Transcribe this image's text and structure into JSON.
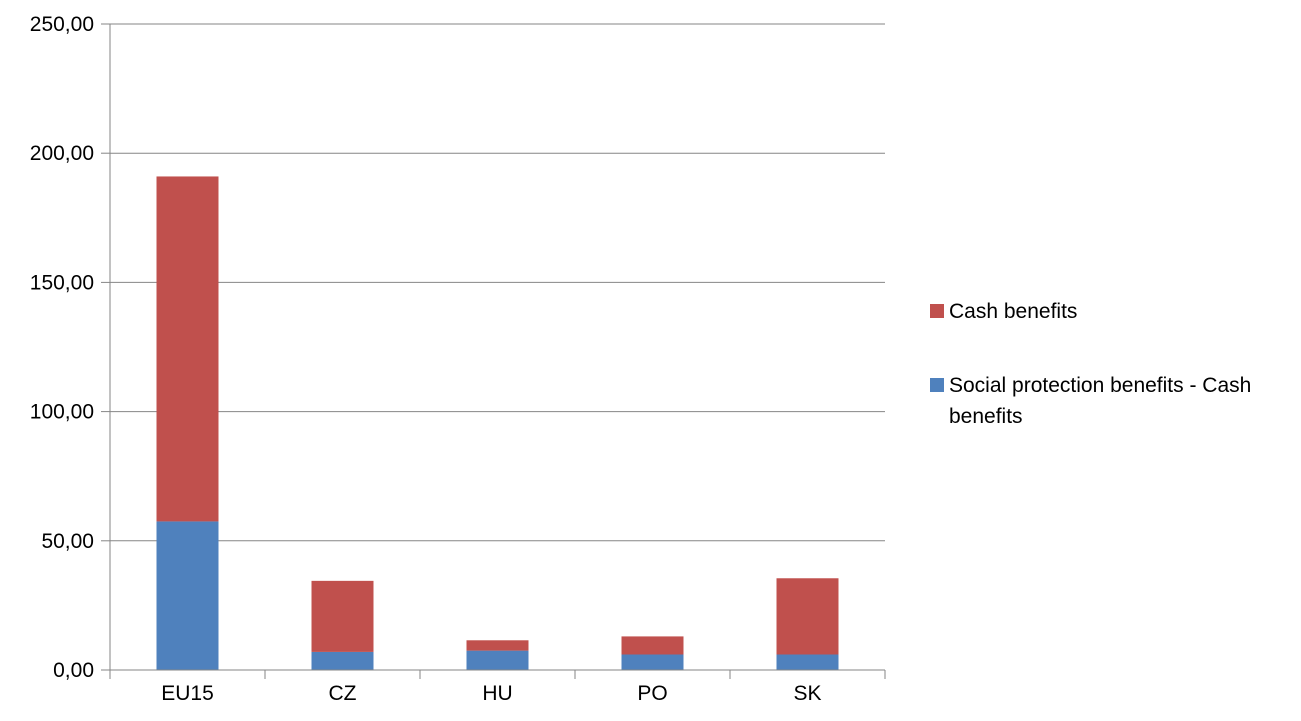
{
  "chart_data": {
    "type": "bar",
    "stacked": true,
    "categories": [
      "EU15",
      "CZ",
      "HU",
      "PO",
      "SK"
    ],
    "series": [
      {
        "name": "Social protection benefits - Cash benefits",
        "color": "#4F81BD",
        "values": [
          57.5,
          7.0,
          7.5,
          6.0,
          6.0
        ]
      },
      {
        "name": "Cash benefits",
        "color": "#C0504D",
        "values": [
          133.5,
          27.5,
          4.0,
          7.0,
          29.5
        ]
      }
    ],
    "y_tick_labels": [
      "0,00",
      "50,00",
      "100,00",
      "150,00",
      "200,00",
      "250,00"
    ],
    "y_ticks": [
      0,
      50,
      100,
      150,
      200,
      250
    ],
    "ylim": [
      0,
      250
    ],
    "grid": "horizontal",
    "legend_position": "right",
    "legend": {
      "entries": [
        {
          "label": "Cash benefits",
          "color": "#C0504D"
        },
        {
          "label": "Social protection benefits - Cash benefits",
          "label_lines": [
            "Social protection benefits - Cash",
            "benefits"
          ],
          "color": "#4F81BD"
        }
      ]
    }
  }
}
